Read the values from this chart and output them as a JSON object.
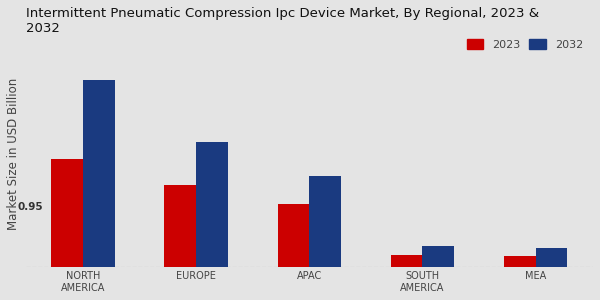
{
  "title": "Intermittent Pneumatic Compression Ipc Device Market, By Regional, 2023 &\n2032",
  "ylabel": "Market Size in USD Billion",
  "categories": [
    "NORTH\nAMERICA",
    "EUROPE",
    "APAC",
    "SOUTH\nAMERICA",
    "MEA"
  ],
  "values_2023": [
    0.95,
    0.72,
    0.55,
    0.1,
    0.09
  ],
  "values_2032": [
    1.65,
    1.1,
    0.8,
    0.18,
    0.16
  ],
  "color_2023": "#cc0000",
  "color_2032": "#1a3a80",
  "background_color": "#e4e4e4",
  "title_fontsize": 9.5,
  "ylabel_fontsize": 8.5,
  "label_fontsize": 7,
  "annotation_text": "0.95",
  "legend_labels": [
    "2023",
    "2032"
  ],
  "bar_width": 0.28,
  "ylim": [
    0,
    2.0
  ]
}
